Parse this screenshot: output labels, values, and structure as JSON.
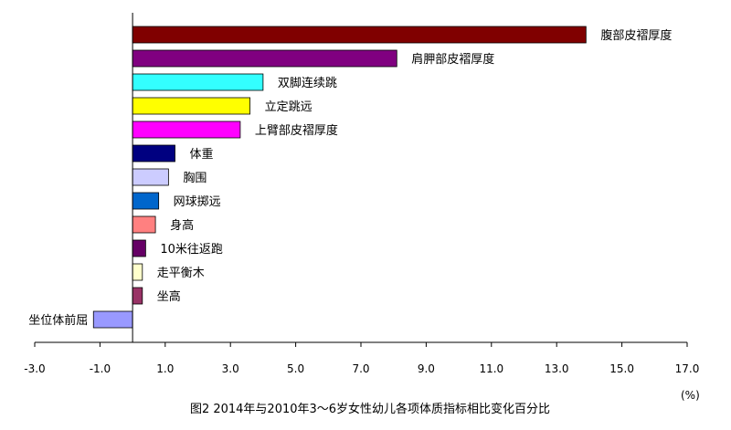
{
  "chart_data": {
    "type": "bar",
    "orientation": "horizontal",
    "categories": [
      "腹部皮褶厚度",
      "肩胛部皮褶厚度",
      "双脚连续跳",
      "立定跳远",
      "上臂部皮褶厚度",
      "体重",
      "胸围",
      "网球掷远",
      "身高",
      "10米往返跑",
      "走平衡木",
      "坐高",
      "坐位体前屈"
    ],
    "values": [
      13.9,
      8.1,
      4.0,
      3.6,
      3.3,
      1.3,
      1.1,
      0.8,
      0.7,
      0.4,
      0.3,
      0.3,
      -1.2
    ],
    "colors": [
      "#800000",
      "#800080",
      "#33FFFF",
      "#FFFF00",
      "#FF00FF",
      "#000080",
      "#CCCCFF",
      "#0066CC",
      "#FF8080",
      "#660066",
      "#FFFFCC",
      "#993366",
      "#9999FF"
    ],
    "xlim": [
      -3.0,
      17.0
    ],
    "x_ticks": [
      -3.0,
      -1.0,
      1.0,
      3.0,
      5.0,
      7.0,
      9.0,
      11.0,
      13.0,
      15.0,
      17.0
    ],
    "x_tick_labels": [
      "-3.0",
      "-1.0",
      "1.0",
      "3.0",
      "5.0",
      "7.0",
      "9.0",
      "11.0",
      "13.0",
      "15.0",
      "17.0"
    ],
    "unit": "(%)",
    "caption": "图2  2014年与2010年3～6岁女性幼儿各项体质指标相比变化百分比",
    "grid": false,
    "legend": "none"
  }
}
